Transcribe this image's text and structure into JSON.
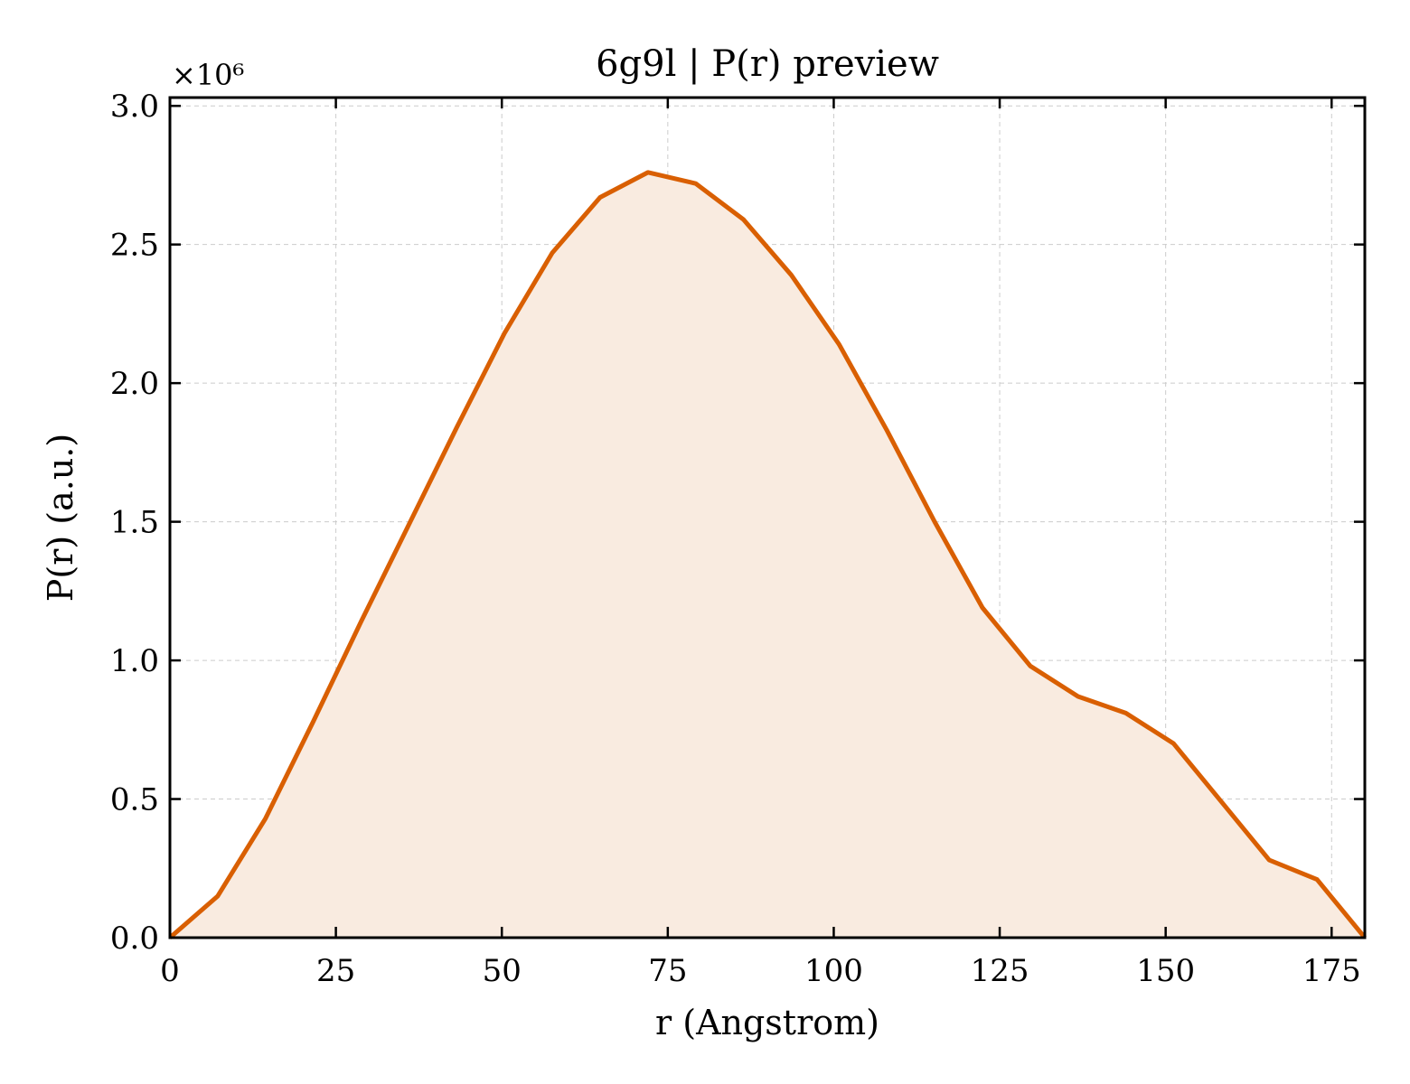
{
  "chart_data": {
    "type": "area",
    "title": "6g9l | P(r) preview",
    "xlabel": "r (Angstrom)",
    "ylabel": "P(r) (a.u.)",
    "y_offset_label": "×10⁶",
    "y_multiplier": 1000000,
    "xlim": [
      0,
      180
    ],
    "ylim": [
      0,
      3.03
    ],
    "xticks": [
      0,
      25,
      50,
      75,
      100,
      125,
      150,
      175
    ],
    "yticks": [
      0.0,
      0.5,
      1.0,
      1.5,
      2.0,
      2.5,
      3.0
    ],
    "ytick_labels": [
      "0.0",
      "0.5",
      "1.0",
      "1.5",
      "2.0",
      "2.5",
      "3.0"
    ],
    "grid": true,
    "series": [
      {
        "line_color": "#d95f02",
        "fill_color": "#f9ebe0",
        "x": [
          0,
          7.2,
          14.4,
          21.6,
          28.8,
          36.0,
          43.2,
          50.4,
          57.6,
          64.8,
          72.0,
          79.2,
          86.4,
          93.6,
          100.8,
          108.0,
          115.2,
          122.4,
          129.6,
          136.8,
          144.0,
          151.2,
          158.4,
          165.6,
          172.8,
          180.0
        ],
        "y": [
          0.0,
          0.15,
          0.43,
          0.78,
          1.14,
          1.49,
          1.84,
          2.18,
          2.47,
          2.67,
          2.76,
          2.72,
          2.59,
          2.39,
          2.14,
          1.83,
          1.5,
          1.19,
          0.98,
          0.87,
          0.81,
          0.7,
          0.49,
          0.28,
          0.21,
          0.0
        ]
      }
    ]
  }
}
